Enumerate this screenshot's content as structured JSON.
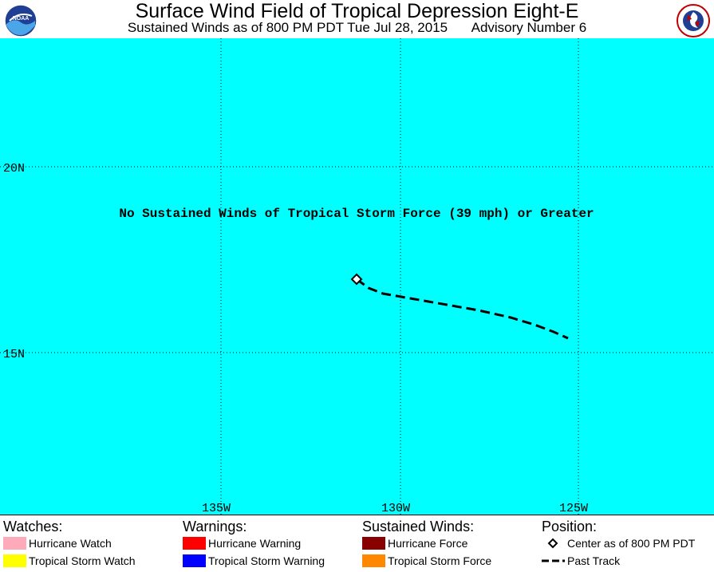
{
  "header": {
    "title": "Surface Wind Field of Tropical Depression Eight-E",
    "subtitle_left": "Sustained Winds as of 800 PM PDT Tue Jul 28, 2015",
    "subtitle_right": "Advisory Number 6",
    "left_logo_text": "NOAA",
    "right_logo_text": "NATIONAL WEATHER SERVICE"
  },
  "map": {
    "ocean_color": "#00ffff",
    "lat_labels": [
      "20N",
      "15N"
    ],
    "lon_labels": [
      "135W",
      "130W",
      "125W"
    ],
    "message": "No Sustained Winds of Tropical Storm Force (39 mph) or Greater",
    "center_icon": "diamond-icon",
    "track_style": "dashed"
  },
  "legend": {
    "watches": {
      "heading": "Watches:",
      "items": [
        {
          "label": "Hurricane Watch",
          "color": "#ffaabb"
        },
        {
          "label": "Tropical Storm Watch",
          "color": "#ffff00"
        }
      ]
    },
    "warnings": {
      "heading": "Warnings:",
      "items": [
        {
          "label": "Hurricane Warning",
          "color": "#ff0000"
        },
        {
          "label": "Tropical Storm Warning",
          "color": "#0000ff"
        }
      ]
    },
    "winds": {
      "heading": "Sustained Winds:",
      "items": [
        {
          "label": "Hurricane Force",
          "color": "#880000"
        },
        {
          "label": "Tropical Storm Force",
          "color": "#ff8800"
        }
      ]
    },
    "position": {
      "heading": "Position:",
      "items": [
        {
          "label": "Center as of 800 PM PDT",
          "icon": "diamond-icon"
        },
        {
          "label": "Past Track",
          "icon": "dashed-line-icon"
        }
      ]
    }
  }
}
